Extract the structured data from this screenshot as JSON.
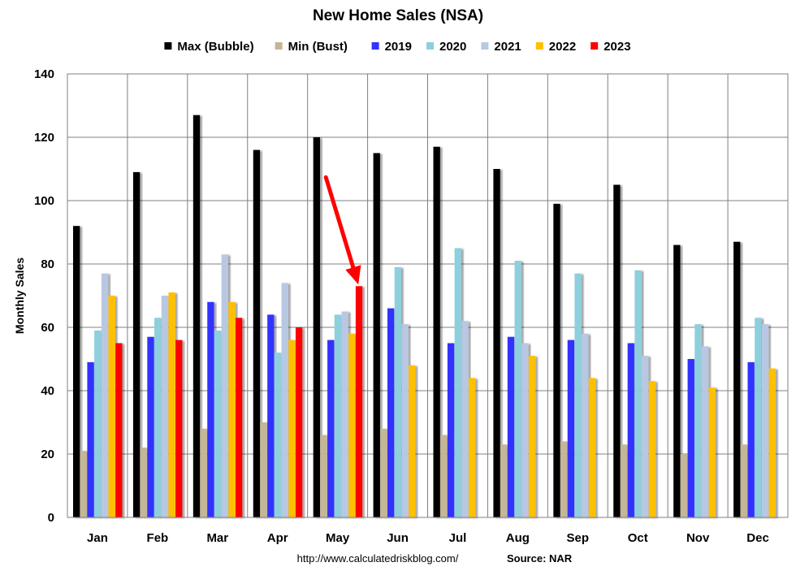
{
  "chart_data": {
    "type": "bar",
    "title": "New Home Sales (NSA)",
    "ylabel": "Monthly Sales",
    "xlabel": "",
    "ylim": [
      0,
      140
    ],
    "yticks": [
      0,
      20,
      40,
      60,
      80,
      100,
      120,
      140
    ],
    "grid": true,
    "legend_position": "top",
    "categories": [
      "Jan",
      "Feb",
      "Mar",
      "Apr",
      "May",
      "Jun",
      "Jul",
      "Aug",
      "Sep",
      "Oct",
      "Nov",
      "Dec"
    ],
    "series": [
      {
        "name": "Max (Bubble)",
        "color": "#000000",
        "values": [
          92,
          109,
          127,
          116,
          120,
          115,
          117,
          110,
          99,
          105,
          86,
          87
        ]
      },
      {
        "name": "Min (Bust)",
        "color": "#c4b696",
        "values": [
          21,
          22,
          28,
          30,
          26,
          28,
          26,
          23,
          24,
          23,
          20,
          23
        ]
      },
      {
        "name": "2019",
        "color": "#3333ff",
        "values": [
          49,
          57,
          68,
          64,
          56,
          66,
          55,
          57,
          56,
          55,
          50,
          49
        ]
      },
      {
        "name": "2020",
        "color": "#8ecfdd",
        "values": [
          59,
          63,
          59,
          52,
          64,
          79,
          85,
          81,
          77,
          78,
          61,
          63
        ]
      },
      {
        "name": "2021",
        "color": "#b8c8e2",
        "values": [
          77,
          70,
          83,
          74,
          65,
          61,
          62,
          55,
          58,
          51,
          54,
          61
        ]
      },
      {
        "name": "2022",
        "color": "#ffc000",
        "values": [
          70,
          71,
          68,
          56,
          58,
          48,
          44,
          51,
          44,
          43,
          41,
          47
        ]
      },
      {
        "name": "2023",
        "color": "#ff0000",
        "values": [
          55,
          56,
          63,
          60,
          73,
          null,
          null,
          null,
          null,
          null,
          null,
          null
        ]
      }
    ],
    "annotation": {
      "type": "arrow",
      "color": "#ff0000",
      "target_category": "May",
      "target_series": "2023"
    }
  },
  "footer": {
    "url": "http://www.calculatedriskblog.com/",
    "source": "Source: NAR"
  }
}
